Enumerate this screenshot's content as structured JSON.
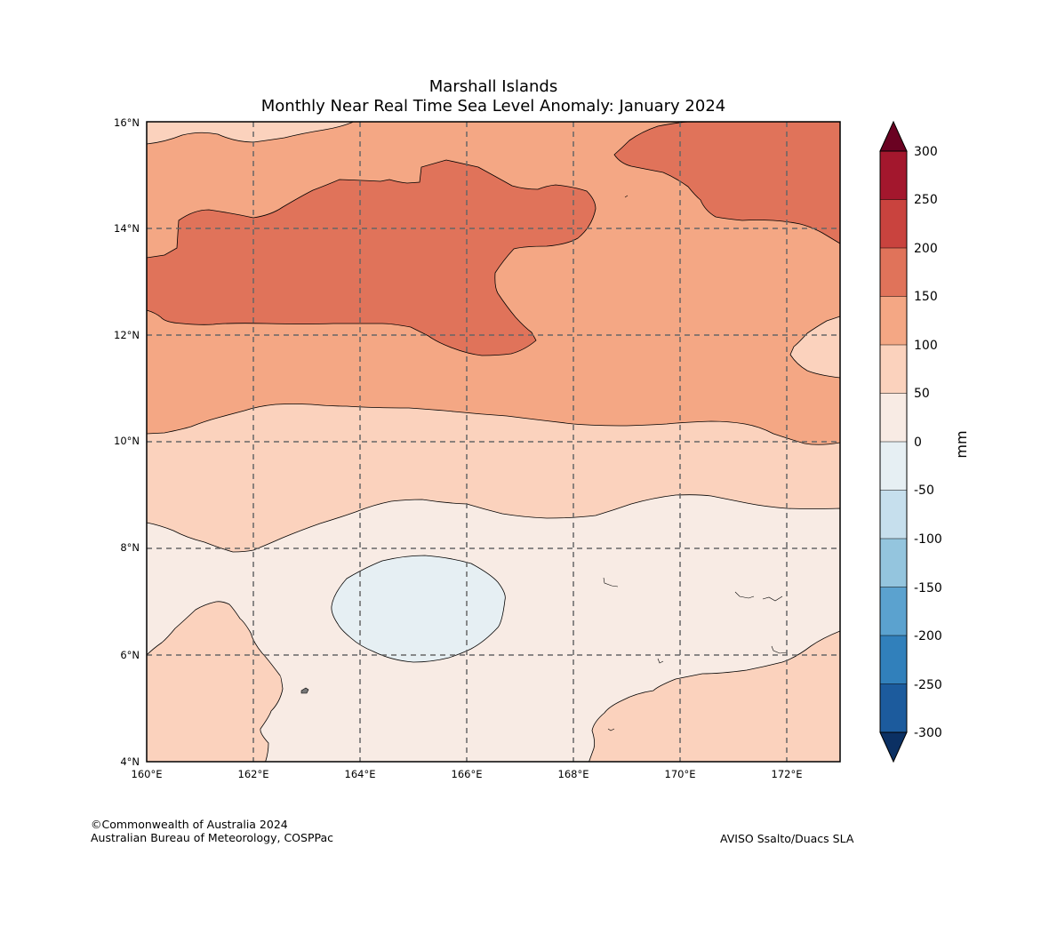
{
  "title": {
    "line1": "Marshall Islands",
    "line2": "Monthly Near Real Time Sea Level Anomaly: January 2024"
  },
  "footer": {
    "copyright": "©Commonwealth of Australia 2024",
    "agency": "Australian Bureau of Meteorology, COSPPac",
    "source": "AVISO Ssalto/Duacs SLA"
  },
  "chart_data": {
    "type": "contour_map",
    "region": "Marshall Islands",
    "lon_range": [
      160,
      173
    ],
    "lat_range": [
      4,
      16
    ],
    "x_ticks": [
      "160°E",
      "162°E",
      "164°E",
      "166°E",
      "168°E",
      "170°E",
      "172°E"
    ],
    "y_ticks": [
      "4°N",
      "6°N",
      "8°N",
      "10°N",
      "12°N",
      "14°N",
      "16°N"
    ],
    "grid": true,
    "colorbar": {
      "label": "mm",
      "placement": "right",
      "ticks": [
        "300",
        "250",
        "200",
        "150",
        "100",
        "50",
        "0",
        "-50",
        "-100",
        "-150",
        "-200",
        "-250",
        "-300"
      ],
      "bins": [
        {
          "range": [
            250,
            300
          ],
          "color": "#a3172d"
        },
        {
          "range": [
            200,
            250
          ],
          "color": "#c9433e"
        },
        {
          "range": [
            150,
            200
          ],
          "color": "#e0735a"
        },
        {
          "range": [
            100,
            150
          ],
          "color": "#f4a784"
        },
        {
          "range": [
            50,
            100
          ],
          "color": "#fbd2bd"
        },
        {
          "range": [
            0,
            50
          ],
          "color": "#f8ebe4"
        },
        {
          "range": [
            -50,
            0
          ],
          "color": "#e6eff3"
        },
        {
          "range": [
            -100,
            -50
          ],
          "color": "#c6dfed"
        },
        {
          "range": [
            -150,
            -100
          ],
          "color": "#94c5de"
        },
        {
          "range": [
            -200,
            -150
          ],
          "color": "#5ba2cf"
        },
        {
          "range": [
            -250,
            -200
          ],
          "color": "#3180bb"
        },
        {
          "range": [
            -300,
            -250
          ],
          "color": "#1c5b9d"
        }
      ],
      "extend_max_color": "#6a0222",
      "extend_min_color": "#0b3063"
    },
    "background_color": "#f4a784"
  }
}
